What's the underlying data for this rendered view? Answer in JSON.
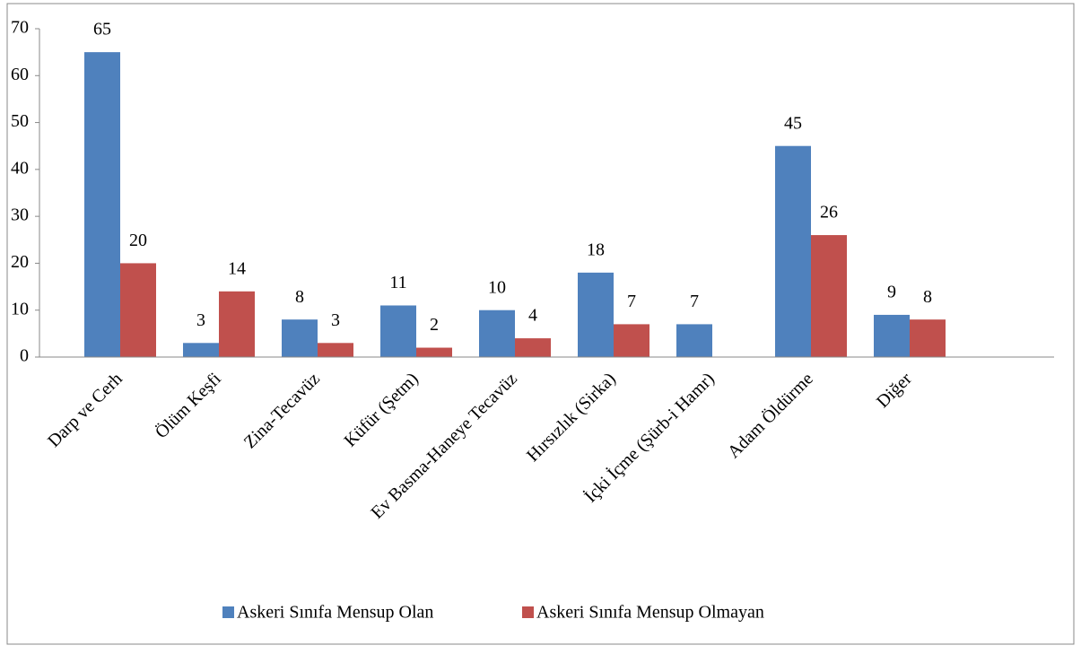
{
  "chart_data": {
    "type": "bar",
    "categories": [
      "Darp ve Cerh",
      "Ölüm Keşfi",
      "Zina-Tecavüz",
      "Küfür (Şetm)",
      "Ev Basma-Haneye Tecavüz",
      "Hırsızlık (Sirka)",
      "İçki İçme (Şürb-i Hamr)",
      "Adam Öldürme",
      "Diğer"
    ],
    "series": [
      {
        "name": "Askeri Sınıfa Mensup Olan",
        "color": "#4f81bd",
        "values": [
          65,
          3,
          8,
          11,
          10,
          18,
          7,
          45,
          9
        ]
      },
      {
        "name": "Askeri Sınıfa Mensup Olmayan",
        "color": "#c0504d",
        "values": [
          20,
          14,
          3,
          2,
          4,
          7,
          null,
          26,
          8
        ]
      }
    ],
    "ylim": [
      0,
      70
    ],
    "yticks": [
      0,
      10,
      20,
      30,
      40,
      50,
      60,
      70
    ],
    "legend": "bottom"
  }
}
